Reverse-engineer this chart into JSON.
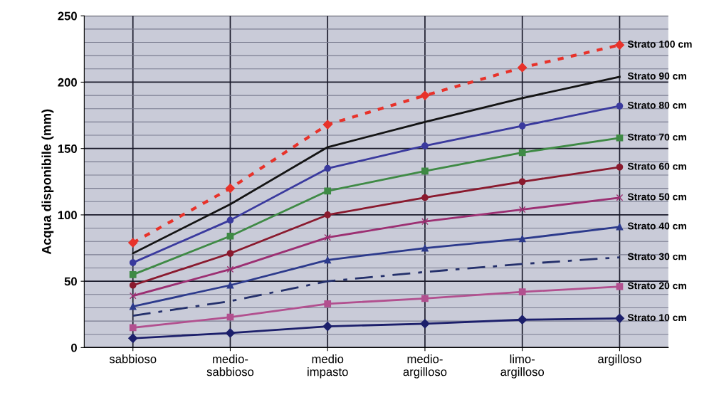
{
  "chart_data": {
    "type": "line",
    "ylabel": "Acqua disponibile (mm)",
    "categories": [
      "sabbioso",
      "medio-\nsabbioso",
      "medio\nimpasto",
      "medio-\nargilloso",
      "limo-\nargilloso",
      "argilloso"
    ],
    "ylim": [
      0,
      250
    ],
    "yticks": [
      0,
      50,
      100,
      150,
      200,
      250
    ],
    "grid": true,
    "legend": false,
    "series": [
      {
        "name": "Strato 10 cm",
        "color": "#1c1f6b",
        "marker": "diamond",
        "line_style": "solid",
        "values": [
          7,
          11,
          16,
          18,
          21,
          22
        ]
      },
      {
        "name": "Strato 20 cm",
        "color": "#b2508f",
        "marker": "square",
        "line_style": "solid",
        "values": [
          15,
          23,
          33,
          37,
          42,
          46
        ]
      },
      {
        "name": "Strato 30 cm",
        "color": "#24306b",
        "marker": "none",
        "line_style": "dashed",
        "values": [
          24,
          35,
          50,
          57,
          63,
          68
        ]
      },
      {
        "name": "Strato 40 cm",
        "color": "#2c3a8c",
        "marker": "triangle",
        "line_style": "solid",
        "values": [
          31,
          47,
          66,
          75,
          82,
          91
        ]
      },
      {
        "name": "Strato 50 cm",
        "color": "#9c2f72",
        "marker": "cross",
        "line_style": "solid",
        "values": [
          39,
          59,
          83,
          95,
          104,
          113
        ]
      },
      {
        "name": "Strato 60 cm",
        "color": "#8a1a2e",
        "marker": "circle",
        "line_style": "solid",
        "values": [
          47,
          71,
          100,
          113,
          125,
          136
        ]
      },
      {
        "name": "Strato 70 cm",
        "color": "#3f8a45",
        "marker": "square",
        "line_style": "solid",
        "values": [
          55,
          84,
          118,
          133,
          147,
          158
        ]
      },
      {
        "name": "Strato 80 cm",
        "color": "#3a3a9e",
        "marker": "circle",
        "line_style": "solid",
        "values": [
          64,
          96,
          135,
          152,
          167,
          182
        ]
      },
      {
        "name": "Strato 90 cm",
        "color": "#141414",
        "marker": "none",
        "line_style": "solid",
        "values": [
          71,
          108,
          151,
          170,
          188,
          204
        ]
      },
      {
        "name": "Strato 100 cm",
        "color": "#e8322a",
        "marker": "diamond",
        "line_style": "dotted",
        "values": [
          79,
          120,
          168,
          190,
          211,
          228
        ]
      }
    ]
  }
}
